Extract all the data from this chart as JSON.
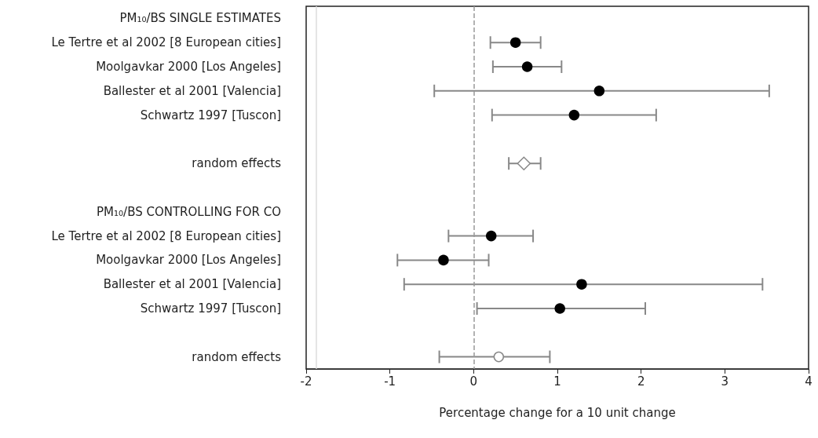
{
  "chart_data": {
    "type": "scatter",
    "orientation": "horizontal",
    "xlabel": "Percentage change for a 10 unit change",
    "categories": [
      "PM₁₀/BS SINGLE ESTIMATES",
      "Le Tertre et al 2002 [8 European cities]",
      "Moolgavkar 2000 [Los Angeles]",
      "Ballester et al 2001 [Valencia]",
      "Schwartz 1997 [Tuscon]",
      null,
      "random effects",
      null,
      "PM₁₀/BS CONTROLLING FOR CO",
      "Le Tertre et al 2002 [8 European cities]",
      "Moolgavkar 2000 [Los Angeles]",
      "Ballester et al 2001 [Valencia]",
      "Schwartz 1997 [Tuscon]",
      null,
      "random effects"
    ],
    "series": [
      {
        "color": "#000000",
        "marker": "circle",
        "values": [
          null,
          0.5,
          0.64,
          1.5,
          1.2,
          null,
          null,
          null,
          null,
          0.21,
          -0.36,
          1.29,
          1.03,
          null,
          null
        ],
        "errors": [
          null,
          [
            0.2,
            0.8
          ],
          [
            0.23,
            1.05
          ],
          [
            -0.47,
            3.53
          ],
          [
            0.22,
            2.18
          ],
          null,
          null,
          null,
          null,
          [
            -0.3,
            0.71
          ],
          [
            -0.91,
            0.18
          ],
          [
            -0.83,
            3.45
          ],
          [
            0.04,
            2.05
          ],
          null,
          null
        ]
      },
      {
        "color": "#ffffff",
        "marker": "diamond",
        "values": [
          null,
          null,
          null,
          null,
          null,
          null,
          0.6,
          null,
          null,
          null,
          null,
          null,
          null,
          null,
          null
        ],
        "errors": [
          null,
          null,
          null,
          null,
          null,
          null,
          [
            0.42,
            0.8
          ],
          null,
          null,
          null,
          null,
          null,
          null,
          null,
          null
        ]
      },
      {
        "color": "#ffffff",
        "marker": "circle",
        "values": [
          null,
          null,
          null,
          null,
          null,
          null,
          null,
          null,
          null,
          null,
          null,
          null,
          null,
          null,
          0.3
        ],
        "errors": [
          null,
          null,
          null,
          null,
          null,
          null,
          null,
          null,
          null,
          null,
          null,
          null,
          null,
          null,
          [
            -0.41,
            0.91
          ]
        ]
      }
    ],
    "xlim": [
      -2,
      4
    ],
    "xticks": [
      -2,
      -1,
      0,
      1,
      2,
      3,
      4
    ],
    "ref_lines": [
      {
        "axis": "x",
        "value": 0,
        "color": "#999999",
        "line_style": "dashed"
      },
      {
        "axis": "x",
        "value": -1.88,
        "color": "#dddddd",
        "line_style": "solid"
      }
    ],
    "grid": false
  }
}
